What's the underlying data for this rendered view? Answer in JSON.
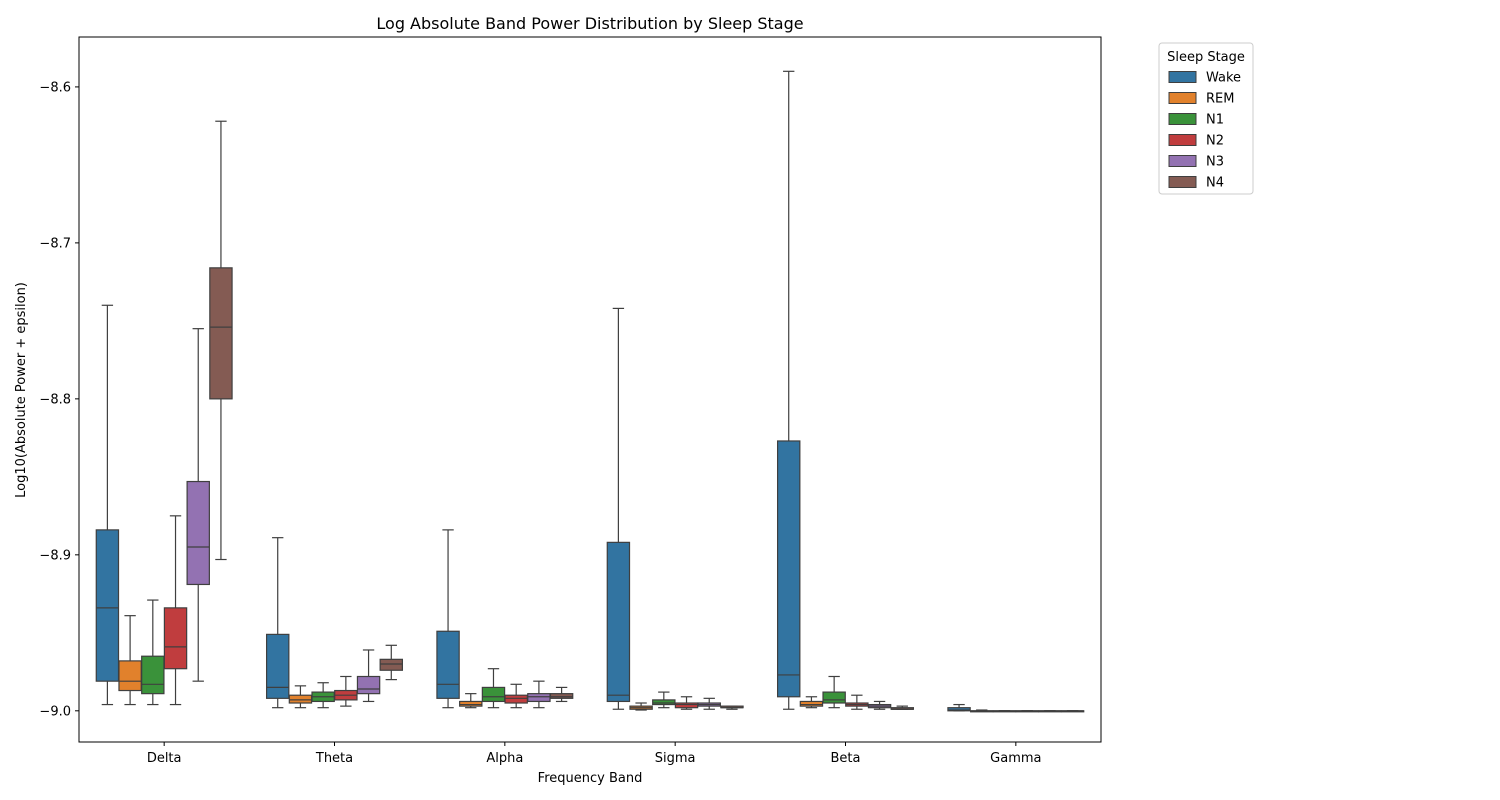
{
  "chart_data": {
    "type": "box",
    "title": "Log Absolute Band Power Distribution by Sleep Stage",
    "xlabel": "Frequency Band",
    "ylabel": "Log10(Absolute Power + epsilon)",
    "categories": [
      "Delta",
      "Theta",
      "Alpha",
      "Sigma",
      "Beta",
      "Gamma"
    ],
    "ylim": [
      -9.02,
      -8.568
    ],
    "yticks": [
      -9.0,
      -8.9,
      -8.8,
      -8.7,
      -8.6
    ],
    "ytick_labels": [
      "−9.0",
      "−8.9",
      "−8.8",
      "−8.7",
      "−8.6"
    ],
    "legend": {
      "title": "Sleep Stage",
      "placement": "outside-top-right"
    },
    "series": [
      {
        "name": "Wake",
        "color": "#3274a1",
        "boxes": [
          {
            "whislo": -8.996,
            "q1": -8.981,
            "med": -8.934,
            "q3": -8.884,
            "whishi": -8.74
          },
          {
            "whislo": -8.998,
            "q1": -8.992,
            "med": -8.985,
            "q3": -8.951,
            "whishi": -8.889
          },
          {
            "whislo": -8.998,
            "q1": -8.992,
            "med": -8.983,
            "q3": -8.949,
            "whishi": -8.884
          },
          {
            "whislo": -8.999,
            "q1": -8.994,
            "med": -8.99,
            "q3": -8.892,
            "whishi": -8.742
          },
          {
            "whislo": -8.999,
            "q1": -8.991,
            "med": -8.977,
            "q3": -8.827,
            "whishi": -8.59
          },
          {
            "whislo": -9.0,
            "q1": -9.0,
            "med": -8.9995,
            "q3": -8.998,
            "whishi": -8.996
          }
        ]
      },
      {
        "name": "REM",
        "color": "#e1812c",
        "boxes": [
          {
            "whislo": -8.996,
            "q1": -8.987,
            "med": -8.981,
            "q3": -8.968,
            "whishi": -8.939
          },
          {
            "whislo": -8.998,
            "q1": -8.995,
            "med": -8.993,
            "q3": -8.99,
            "whishi": -8.984
          },
          {
            "whislo": -8.998,
            "q1": -8.997,
            "med": -8.996,
            "q3": -8.994,
            "whishi": -8.989
          },
          {
            "whislo": -8.9995,
            "q1": -8.999,
            "med": -8.998,
            "q3": -8.997,
            "whishi": -8.995
          },
          {
            "whislo": -8.998,
            "q1": -8.997,
            "med": -8.996,
            "q3": -8.994,
            "whishi": -8.991
          },
          {
            "whislo": -9.0,
            "q1": -9.0,
            "med": -9.0,
            "q3": -9.0,
            "whishi": -8.9995
          }
        ]
      },
      {
        "name": "N1",
        "color": "#3a923a",
        "boxes": [
          {
            "whislo": -8.996,
            "q1": -8.989,
            "med": -8.983,
            "q3": -8.965,
            "whishi": -8.929
          },
          {
            "whislo": -8.998,
            "q1": -8.994,
            "med": -8.991,
            "q3": -8.988,
            "whishi": -8.982
          },
          {
            "whislo": -8.998,
            "q1": -8.994,
            "med": -8.991,
            "q3": -8.985,
            "whishi": -8.973
          },
          {
            "whislo": -8.998,
            "q1": -8.996,
            "med": -8.995,
            "q3": -8.993,
            "whishi": -8.988
          },
          {
            "whislo": -8.998,
            "q1": -8.995,
            "med": -8.993,
            "q3": -8.988,
            "whishi": -8.978
          },
          {
            "whislo": -9.0,
            "q1": -9.0,
            "med": -9.0,
            "q3": -9.0,
            "whishi": -9.0
          }
        ]
      },
      {
        "name": "N2",
        "color": "#c03d3e",
        "boxes": [
          {
            "whislo": -8.996,
            "q1": -8.973,
            "med": -8.959,
            "q3": -8.934,
            "whishi": -8.875
          },
          {
            "whislo": -8.997,
            "q1": -8.993,
            "med": -8.99,
            "q3": -8.987,
            "whishi": -8.978
          },
          {
            "whislo": -8.998,
            "q1": -8.995,
            "med": -8.992,
            "q3": -8.99,
            "whishi": -8.983
          },
          {
            "whislo": -8.999,
            "q1": -8.998,
            "med": -8.996,
            "q3": -8.995,
            "whishi": -8.991
          },
          {
            "whislo": -8.999,
            "q1": -8.997,
            "med": -8.996,
            "q3": -8.995,
            "whishi": -8.99
          },
          {
            "whislo": -9.0,
            "q1": -9.0,
            "med": -9.0,
            "q3": -9.0,
            "whishi": -9.0
          }
        ]
      },
      {
        "name": "N3",
        "color": "#9372b2",
        "boxes": [
          {
            "whislo": -8.981,
            "q1": -8.919,
            "med": -8.895,
            "q3": -8.853,
            "whishi": -8.755
          },
          {
            "whislo": -8.994,
            "q1": -8.989,
            "med": -8.986,
            "q3": -8.978,
            "whishi": -8.961
          },
          {
            "whislo": -8.998,
            "q1": -8.994,
            "med": -8.991,
            "q3": -8.989,
            "whishi": -8.981
          },
          {
            "whislo": -8.999,
            "q1": -8.997,
            "med": -8.996,
            "q3": -8.995,
            "whishi": -8.992
          },
          {
            "whislo": -8.999,
            "q1": -8.998,
            "med": -8.997,
            "q3": -8.996,
            "whishi": -8.994
          },
          {
            "whislo": -9.0,
            "q1": -9.0,
            "med": -9.0,
            "q3": -9.0,
            "whishi": -9.0
          }
        ]
      },
      {
        "name": "N4",
        "color": "#845b53",
        "boxes": [
          {
            "whislo": -8.903,
            "q1": -8.8,
            "med": -8.754,
            "q3": -8.716,
            "whishi": -8.622
          },
          {
            "whislo": -8.98,
            "q1": -8.974,
            "med": -8.97,
            "q3": -8.967,
            "whishi": -8.958
          },
          {
            "whislo": -8.994,
            "q1": -8.992,
            "med": -8.991,
            "q3": -8.989,
            "whishi": -8.985
          },
          {
            "whislo": -8.999,
            "q1": -8.998,
            "med": -8.998,
            "q3": -8.997,
            "whishi": -8.997
          },
          {
            "whislo": -8.999,
            "q1": -8.999,
            "med": -8.999,
            "q3": -8.998,
            "whishi": -8.997
          },
          {
            "whislo": -9.0,
            "q1": -9.0,
            "med": -9.0,
            "q3": -9.0,
            "whishi": -9.0
          }
        ]
      }
    ]
  }
}
